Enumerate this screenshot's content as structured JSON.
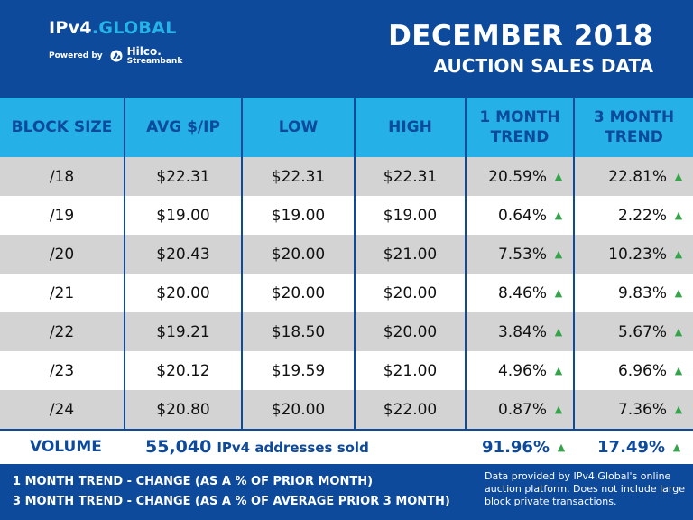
{
  "logo": {
    "name_part1": "IPv4",
    "name_part2": ".GLOBAL",
    "powered_by": "Powered by",
    "partner": "Hilco.",
    "partner_sub": "Streambank"
  },
  "title": {
    "line1": "DECEMBER 2018",
    "line2": "AUCTION SALES DATA"
  },
  "table": {
    "headers": [
      "BLOCK SIZE",
      "AVG $/IP",
      "LOW",
      "HIGH",
      "1 MONTH TREND",
      "3 MONTH TREND"
    ],
    "rows": [
      {
        "block": "/18",
        "avg": "$22.31",
        "low": "$22.31",
        "high": "$22.31",
        "trend1": "20.59%",
        "trend3": "22.81%"
      },
      {
        "block": "/19",
        "avg": "$19.00",
        "low": "$19.00",
        "high": "$19.00",
        "trend1": "0.64%",
        "trend3": "2.22%"
      },
      {
        "block": "/20",
        "avg": "$20.43",
        "low": "$20.00",
        "high": "$21.00",
        "trend1": "7.53%",
        "trend3": "10.23%"
      },
      {
        "block": "/21",
        "avg": "$20.00",
        "low": "$20.00",
        "high": "$20.00",
        "trend1": "8.46%",
        "trend3": "9.83%"
      },
      {
        "block": "/22",
        "avg": "$19.21",
        "low": "$18.50",
        "high": "$20.00",
        "trend1": "3.84%",
        "trend3": "5.67%"
      },
      {
        "block": "/23",
        "avg": "$20.12",
        "low": "$19.59",
        "high": "$21.00",
        "trend1": "4.96%",
        "trend3": "6.96%"
      },
      {
        "block": "/24",
        "avg": "$20.80",
        "low": "$20.00",
        "high": "$22.00",
        "trend1": "0.87%",
        "trend3": "7.36%"
      }
    ],
    "trend_arrow": "▲"
  },
  "totals": {
    "label": "VOLUME",
    "volume_number": "55,040",
    "volume_text": "IPv4 addresses sold",
    "trend1": "91.96%",
    "trend3": "17.49%"
  },
  "footer": {
    "legend1": "1 MONTH TREND - CHANGE (AS A % OF PRIOR MONTH)",
    "legend2": "3 MONTH TREND - CHANGE (AS A % OF AVERAGE PRIOR 3 MONTH)",
    "note": "Data provided by IPv4.Global's online auction platform. Does not include large block private transactions."
  },
  "colors": {
    "navy": "#0d4a9c",
    "header_blue": "#25b0e8",
    "row_shade": "#d3d3d3",
    "trend_up": "#35a34a"
  }
}
